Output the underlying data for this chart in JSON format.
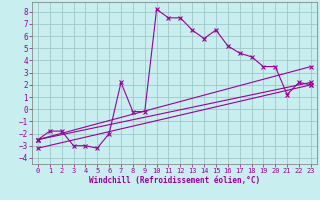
{
  "xlabel": "Windchill (Refroidissement éolien,°C)",
  "bg_color": "#c8eef0",
  "line_color": "#990099",
  "xlim": [
    -0.5,
    23.5
  ],
  "ylim": [
    -4.5,
    8.8
  ],
  "xticks": [
    0,
    1,
    2,
    3,
    4,
    5,
    6,
    7,
    8,
    9,
    10,
    11,
    12,
    13,
    14,
    15,
    16,
    17,
    18,
    19,
    20,
    21,
    22,
    23
  ],
  "yticks": [
    -4,
    -3,
    -2,
    -1,
    0,
    1,
    2,
    3,
    4,
    5,
    6,
    7,
    8
  ],
  "series1_x": [
    0,
    1,
    2,
    3,
    4,
    5,
    6,
    7,
    8,
    9,
    10,
    11,
    12,
    13,
    14,
    15,
    16,
    17,
    18,
    19,
    20,
    21,
    22,
    23
  ],
  "series1_y": [
    -2.5,
    -1.8,
    -1.8,
    -3.0,
    -3.0,
    -3.2,
    -2.0,
    2.2,
    -0.2,
    -0.2,
    8.2,
    7.5,
    7.5,
    6.5,
    5.8,
    6.5,
    5.2,
    4.6,
    4.3,
    3.5,
    3.5,
    1.2,
    2.2,
    2.0
  ],
  "series2_x": [
    0,
    23
  ],
  "series2_y": [
    -2.5,
    3.5
  ],
  "series3_x": [
    0,
    23
  ],
  "series3_y": [
    -2.5,
    2.2
  ],
  "series4_x": [
    0,
    23
  ],
  "series4_y": [
    -3.2,
    2.0
  ]
}
